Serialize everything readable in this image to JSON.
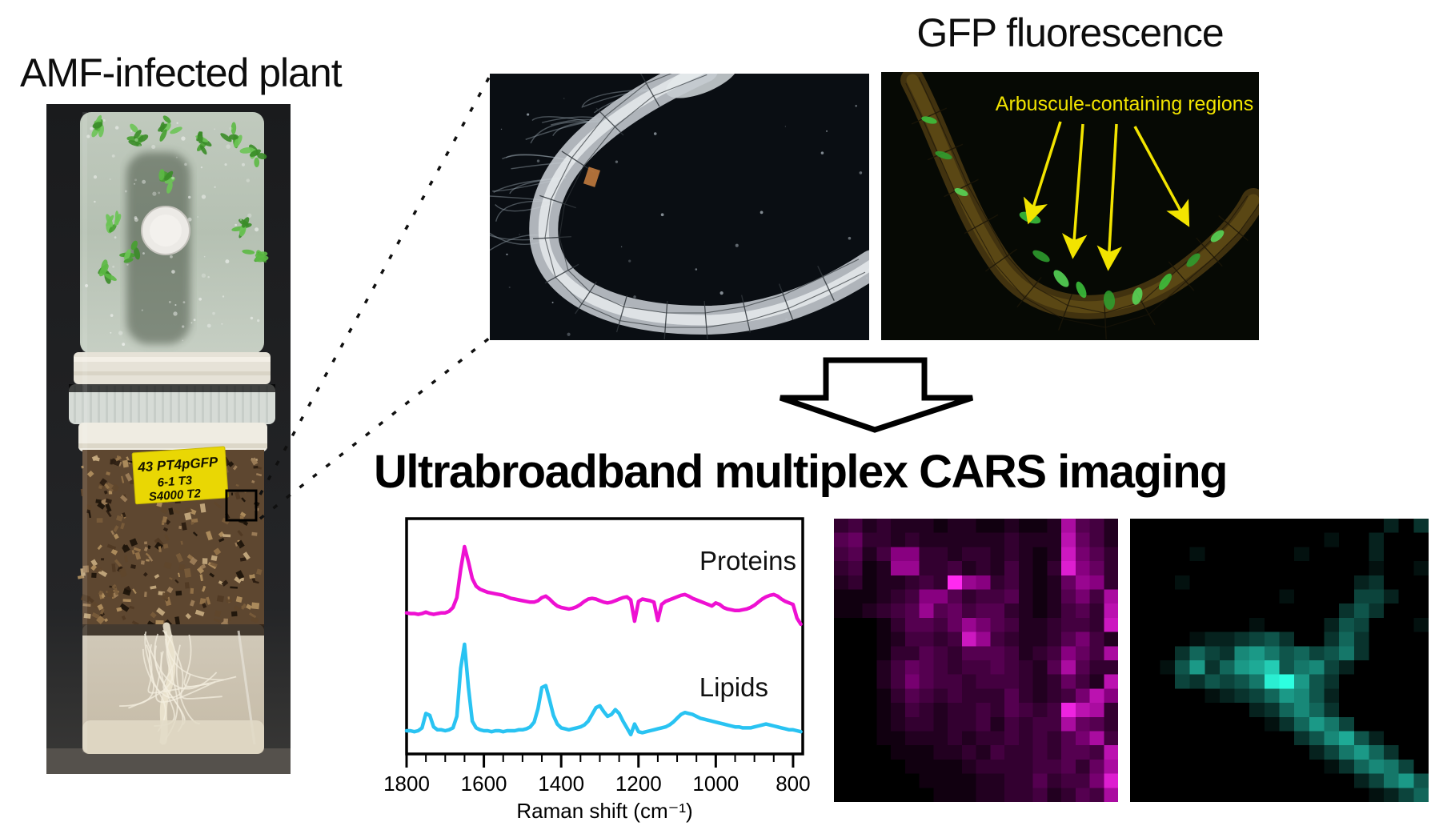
{
  "figure": {
    "left_title": "AMF-infected plant",
    "gfp_title": "GFP fluorescence",
    "gfp_annotation": "Arbuscule-containing regions",
    "cars_title": "Ultrabroadband multiplex CARS imaging",
    "note_lines": [
      "43 PT4pGFP",
      "6-1   T3",
      "S4000 T2"
    ],
    "colors": {
      "cars_title": "#f5846f",
      "annotation_yellow": "#f2e400",
      "proteins_trace": "#ee10d2",
      "lipids_trace": "#29c3f2"
    }
  },
  "chart_data": {
    "type": "line",
    "title": "",
    "xlabel": "Raman shift (cm⁻¹)",
    "ylabel": "",
    "x_ticks": [
      1800,
      1600,
      1400,
      1200,
      1000,
      800
    ],
    "x_minor_step": 50,
    "x_range": [
      1800,
      775
    ],
    "x_step": -10,
    "grid": false,
    "legend_position": "inside-right",
    "series": [
      {
        "name": "Proteins",
        "color": "#ee10d2",
        "values": [
          0.13,
          0.12,
          0.12,
          0.11,
          0.12,
          0.14,
          0.12,
          0.11,
          0.12,
          0.13,
          0.13,
          0.15,
          0.2,
          0.33,
          0.7,
          1.0,
          0.8,
          0.58,
          0.48,
          0.44,
          0.42,
          0.4,
          0.39,
          0.38,
          0.37,
          0.36,
          0.34,
          0.32,
          0.31,
          0.3,
          0.29,
          0.28,
          0.27,
          0.27,
          0.29,
          0.33,
          0.35,
          0.31,
          0.26,
          0.22,
          0.2,
          0.19,
          0.18,
          0.19,
          0.21,
          0.24,
          0.28,
          0.31,
          0.32,
          0.31,
          0.29,
          0.27,
          0.26,
          0.27,
          0.29,
          0.31,
          0.33,
          0.34,
          0.3,
          0.02,
          0.28,
          0.31,
          0.3,
          0.29,
          0.27,
          0.03,
          0.24,
          0.28,
          0.3,
          0.32,
          0.34,
          0.36,
          0.37,
          0.35,
          0.32,
          0.3,
          0.28,
          0.26,
          0.24,
          0.22,
          0.26,
          0.24,
          0.2,
          0.18,
          0.17,
          0.16,
          0.16,
          0.17,
          0.18,
          0.2,
          0.23,
          0.27,
          0.31,
          0.34,
          0.36,
          0.37,
          0.35,
          0.31,
          0.28,
          0.26,
          0.24,
          0.06,
          -0.02
        ]
      },
      {
        "name": "Lipids",
        "color": "#29c3f2",
        "values": [
          0.1,
          0.1,
          0.09,
          0.1,
          0.13,
          0.28,
          0.26,
          0.14,
          0.11,
          0.11,
          0.1,
          0.11,
          0.13,
          0.25,
          0.75,
          1.0,
          0.55,
          0.2,
          0.13,
          0.11,
          0.1,
          0.1,
          0.09,
          0.1,
          0.1,
          0.09,
          0.1,
          0.1,
          0.1,
          0.11,
          0.11,
          0.12,
          0.14,
          0.19,
          0.33,
          0.55,
          0.57,
          0.42,
          0.26,
          0.17,
          0.13,
          0.12,
          0.11,
          0.12,
          0.13,
          0.14,
          0.16,
          0.2,
          0.27,
          0.34,
          0.36,
          0.3,
          0.25,
          0.27,
          0.32,
          0.28,
          0.2,
          0.13,
          0.06,
          0.17,
          0.09,
          0.08,
          0.09,
          0.1,
          0.11,
          0.12,
          0.13,
          0.14,
          0.16,
          0.19,
          0.23,
          0.27,
          0.29,
          0.28,
          0.27,
          0.25,
          0.23,
          0.22,
          0.21,
          0.2,
          0.19,
          0.18,
          0.17,
          0.16,
          0.15,
          0.14,
          0.14,
          0.13,
          0.13,
          0.13,
          0.14,
          0.15,
          0.16,
          0.17,
          0.16,
          0.15,
          0.14,
          0.13,
          0.12,
          0.11,
          0.11,
          0.1,
          0.09
        ]
      }
    ]
  },
  "cars_maps": {
    "proteins_map": {
      "palette": "magenta",
      "rows": [
        "3423222122112112a542",
        "5633232222223222b642",
        "4524883323323212c753",
        "3412993342324213d863",
        "23122343f98342126983",
        "1112348853445212574a",
        "1123459564553212453b",
        "0001355469754223443c",
        "000124434c9432235742",
        "0001335435554234864a",
        "0002465434454325a533",
        "0002475443444323642b",
        "000135434333532347b8",
        "0001243233435434eba3",
        "0001233233424344a653",
        "000112223233434357a4",
        "0000111223243343554b",
        "0000011112333344536a",
        "0000001111223353447d",
        "0000000111223342354a"
      ]
    },
    "lipids_map": {
      "palette": "cyan",
      "rows": [
        "00000000000000000203",
        "00000000000001002000",
        "00001000000100002000",
        "00000000000000001001",
        "00010000000000023000",
        "00000000001000044200",
        "00000000000000353000",
        "00000000100002540001",
        "00001223453003630000",
        "00036438975645730000",
        "00159369ac5784200000",
        "000435457ef953000000",
        "00000123469852000000",
        "00000000236863000000",
        "00000000013697400000",
        "00000000000358a52000",
        "00000000000024796300",
        "00000000000001368740",
        "00000000000000024795",
        "00000000000000001246"
      ]
    }
  }
}
